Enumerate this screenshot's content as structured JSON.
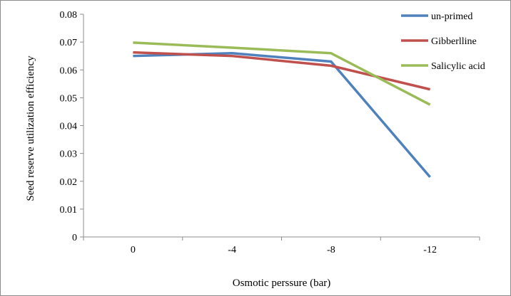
{
  "chart_data": {
    "type": "line",
    "title": "",
    "xlabel": "Osmotic perssure (bar)",
    "ylabel": "Seed reserve utilization  efficiency",
    "categories": [
      "0",
      "-4",
      "-8",
      "-12"
    ],
    "ylim": [
      0,
      0.08
    ],
    "yticks": [
      "0",
      "0.01",
      "0.02",
      "0.03",
      "0.04",
      "0.05",
      "0.06",
      "0.07",
      "0.08"
    ],
    "grid": false,
    "legend_position": "top-right",
    "series": [
      {
        "name": "un-primed",
        "color": "#4f81bd",
        "values": [
          0.065,
          0.066,
          0.063,
          0.0215
        ]
      },
      {
        "name": "Gibberlline",
        "color": "#c0504d",
        "values": [
          0.0663,
          0.065,
          0.0615,
          0.053
        ]
      },
      {
        "name": "Salicylic acid",
        "color": "#9bbb59",
        "values": [
          0.0698,
          0.068,
          0.066,
          0.0475
        ]
      }
    ]
  }
}
